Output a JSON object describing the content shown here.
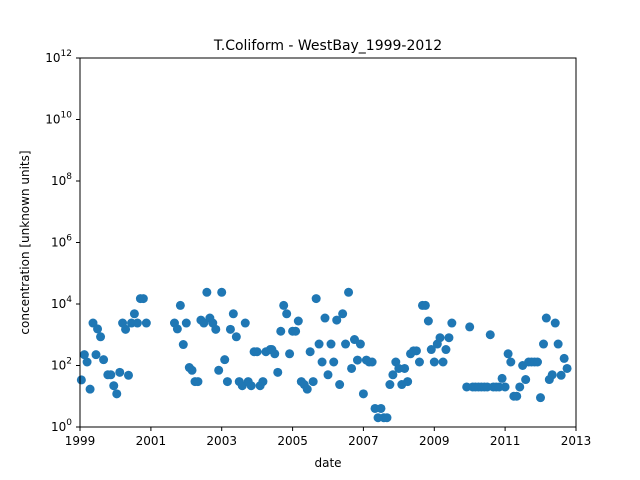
{
  "chart_data": {
    "type": "scatter",
    "title": "T.Coliform - WestBay_1999-2012",
    "xlabel": "date",
    "ylabel": "concentration [unknown units]",
    "x_scale": "date",
    "y_scale": "log",
    "xlim": [
      "1999-01-01",
      "2013-01-01"
    ],
    "ylim": [
      1,
      1000000000000
    ],
    "x_ticks": [
      {
        "value": "1999-01-01",
        "label": "1999"
      },
      {
        "value": "2001-01-01",
        "label": "2001"
      },
      {
        "value": "2003-01-01",
        "label": "2003"
      },
      {
        "value": "2005-01-01",
        "label": "2005"
      },
      {
        "value": "2007-01-01",
        "label": "2007"
      },
      {
        "value": "2009-01-01",
        "label": "2009"
      },
      {
        "value": "2011-01-01",
        "label": "2011"
      },
      {
        "value": "2013-01-01",
        "label": "2013"
      }
    ],
    "y_ticks": [
      {
        "value": 1,
        "base": "10",
        "exp": "0"
      },
      {
        "value": 100,
        "base": "10",
        "exp": "2"
      },
      {
        "value": 10000,
        "base": "10",
        "exp": "4"
      },
      {
        "value": 1000000,
        "base": "10",
        "exp": "6"
      },
      {
        "value": 100000000,
        "base": "10",
        "exp": "8"
      },
      {
        "value": 10000000000,
        "base": "10",
        "exp": "10"
      },
      {
        "value": 1000000000000,
        "base": "10",
        "exp": "12"
      }
    ],
    "grid": false,
    "marker_color": "#1f77b4",
    "series": [
      {
        "points": [
          [
            "1999-01-15",
            34
          ],
          [
            "1999-02-15",
            225
          ],
          [
            "1999-03-15",
            130
          ],
          [
            "1999-04-15",
            17
          ],
          [
            "1999-05-15",
            2400
          ],
          [
            "1999-06-15",
            225
          ],
          [
            "1999-07-01",
            1550
          ],
          [
            "1999-08-01",
            860
          ],
          [
            "1999-09-01",
            155
          ],
          [
            "1999-10-15",
            50
          ],
          [
            "1999-11-15",
            50
          ],
          [
            "1999-12-15",
            22
          ],
          [
            "2000-01-15",
            12
          ],
          [
            "2000-02-15",
            60
          ],
          [
            "2000-03-15",
            2400
          ],
          [
            "2000-04-15",
            1500
          ],
          [
            "2000-05-15",
            48
          ],
          [
            "2000-06-15",
            2400
          ],
          [
            "2000-07-15",
            4800
          ],
          [
            "2000-08-15",
            2400
          ],
          [
            "2000-09-15",
            15000
          ],
          [
            "2000-10-15",
            15000
          ],
          [
            "2000-11-15",
            2400
          ],
          [
            "2001-09-01",
            2400
          ],
          [
            "2001-10-01",
            1550
          ],
          [
            "2001-11-01",
            9000
          ],
          [
            "2001-12-01",
            480
          ],
          [
            "2002-01-01",
            2400
          ],
          [
            "2002-02-01",
            86
          ],
          [
            "2002-03-01",
            70
          ],
          [
            "2002-04-01",
            30
          ],
          [
            "2002-05-01",
            30
          ],
          [
            "2002-06-01",
            3000
          ],
          [
            "2002-07-01",
            2400
          ],
          [
            "2002-08-01",
            24000
          ],
          [
            "2002-09-01",
            3500
          ],
          [
            "2002-10-01",
            2400
          ],
          [
            "2002-11-01",
            1500
          ],
          [
            "2002-12-01",
            70
          ],
          [
            "2003-01-01",
            24000
          ],
          [
            "2003-02-01",
            155
          ],
          [
            "2003-03-01",
            30
          ],
          [
            "2003-04-01",
            1500
          ],
          [
            "2003-05-01",
            4800
          ],
          [
            "2003-06-01",
            860
          ],
          [
            "2003-07-01",
            30
          ],
          [
            "2003-08-01",
            22
          ],
          [
            "2003-09-01",
            2400
          ],
          [
            "2003-10-01",
            30
          ],
          [
            "2003-11-01",
            22
          ],
          [
            "2003-12-01",
            280
          ],
          [
            "2004-01-01",
            280
          ],
          [
            "2004-02-01",
            22
          ],
          [
            "2004-03-01",
            30
          ],
          [
            "2004-04-01",
            280
          ],
          [
            "2004-05-15",
            330
          ],
          [
            "2004-06-01",
            330
          ],
          [
            "2004-07-01",
            240
          ],
          [
            "2004-08-01",
            60
          ],
          [
            "2004-09-01",
            1300
          ],
          [
            "2004-10-01",
            9000
          ],
          [
            "2004-11-01",
            4800
          ],
          [
            "2004-12-01",
            240
          ],
          [
            "2005-01-01",
            1300
          ],
          [
            "2005-02-01",
            1300
          ],
          [
            "2005-03-01",
            2800
          ],
          [
            "2005-04-01",
            30
          ],
          [
            "2005-05-01",
            24
          ],
          [
            "2005-06-01",
            17
          ],
          [
            "2005-07-01",
            280
          ],
          [
            "2005-08-01",
            30
          ],
          [
            "2005-09-01",
            15000
          ],
          [
            "2005-10-01",
            500
          ],
          [
            "2005-11-01",
            130
          ],
          [
            "2005-12-01",
            3500
          ],
          [
            "2006-01-01",
            50
          ],
          [
            "2006-02-01",
            500
          ],
          [
            "2006-03-01",
            130
          ],
          [
            "2006-04-01",
            3000
          ],
          [
            "2006-05-01",
            24
          ],
          [
            "2006-06-01",
            4800
          ],
          [
            "2006-07-01",
            500
          ],
          [
            "2006-08-01",
            24000
          ],
          [
            "2006-09-01",
            80
          ],
          [
            "2006-10-01",
            700
          ],
          [
            "2006-11-01",
            150
          ],
          [
            "2006-12-01",
            500
          ],
          [
            "2007-01-01",
            12
          ],
          [
            "2007-02-01",
            150
          ],
          [
            "2007-03-01",
            130
          ],
          [
            "2007-04-01",
            130
          ],
          [
            "2007-05-01",
            4
          ],
          [
            "2007-06-01",
            2
          ],
          [
            "2007-07-01",
            4
          ],
          [
            "2007-08-01",
            2
          ],
          [
            "2007-09-01",
            2
          ],
          [
            "2007-10-01",
            24
          ],
          [
            "2007-11-01",
            50
          ],
          [
            "2007-12-01",
            130
          ],
          [
            "2008-01-01",
            80
          ],
          [
            "2008-02-01",
            24
          ],
          [
            "2008-03-01",
            80
          ],
          [
            "2008-04-01",
            30
          ],
          [
            "2008-05-01",
            240
          ],
          [
            "2008-06-01",
            300
          ],
          [
            "2008-07-01",
            300
          ],
          [
            "2008-08-01",
            130
          ],
          [
            "2008-09-01",
            9000
          ],
          [
            "2008-10-01",
            9000
          ],
          [
            "2008-11-01",
            2800
          ],
          [
            "2008-12-01",
            330
          ],
          [
            "2009-01-01",
            130
          ],
          [
            "2009-02-01",
            500
          ],
          [
            "2009-03-01",
            800
          ],
          [
            "2009-04-01",
            130
          ],
          [
            "2009-05-01",
            330
          ],
          [
            "2009-06-01",
            800
          ],
          [
            "2009-07-01",
            2400
          ],
          [
            "2009-12-01",
            20
          ],
          [
            "2010-01-01",
            1800
          ],
          [
            "2010-02-01",
            20
          ],
          [
            "2010-03-01",
            20
          ],
          [
            "2010-04-01",
            20
          ],
          [
            "2010-05-01",
            20
          ],
          [
            "2010-06-01",
            20
          ],
          [
            "2010-07-01",
            20
          ],
          [
            "2010-08-01",
            1000
          ],
          [
            "2010-09-01",
            20
          ],
          [
            "2010-10-01",
            20
          ],
          [
            "2010-11-01",
            20
          ],
          [
            "2010-12-01",
            38
          ],
          [
            "2011-01-01",
            20
          ],
          [
            "2011-02-01",
            240
          ],
          [
            "2011-03-01",
            130
          ],
          [
            "2011-04-01",
            10
          ],
          [
            "2011-05-01",
            10
          ],
          [
            "2011-06-01",
            20
          ],
          [
            "2011-07-01",
            100
          ],
          [
            "2011-08-01",
            35
          ],
          [
            "2011-09-01",
            130
          ],
          [
            "2011-10-01",
            130
          ],
          [
            "2011-11-01",
            130
          ],
          [
            "2011-12-01",
            130
          ],
          [
            "2012-01-01",
            9
          ],
          [
            "2012-02-01",
            500
          ],
          [
            "2012-03-01",
            3500
          ],
          [
            "2012-04-01",
            35
          ],
          [
            "2012-05-01",
            50
          ],
          [
            "2012-06-01",
            2400
          ],
          [
            "2012-07-01",
            500
          ],
          [
            "2012-08-01",
            48
          ],
          [
            "2012-09-01",
            170
          ],
          [
            "2012-10-01",
            80
          ]
        ]
      }
    ]
  }
}
